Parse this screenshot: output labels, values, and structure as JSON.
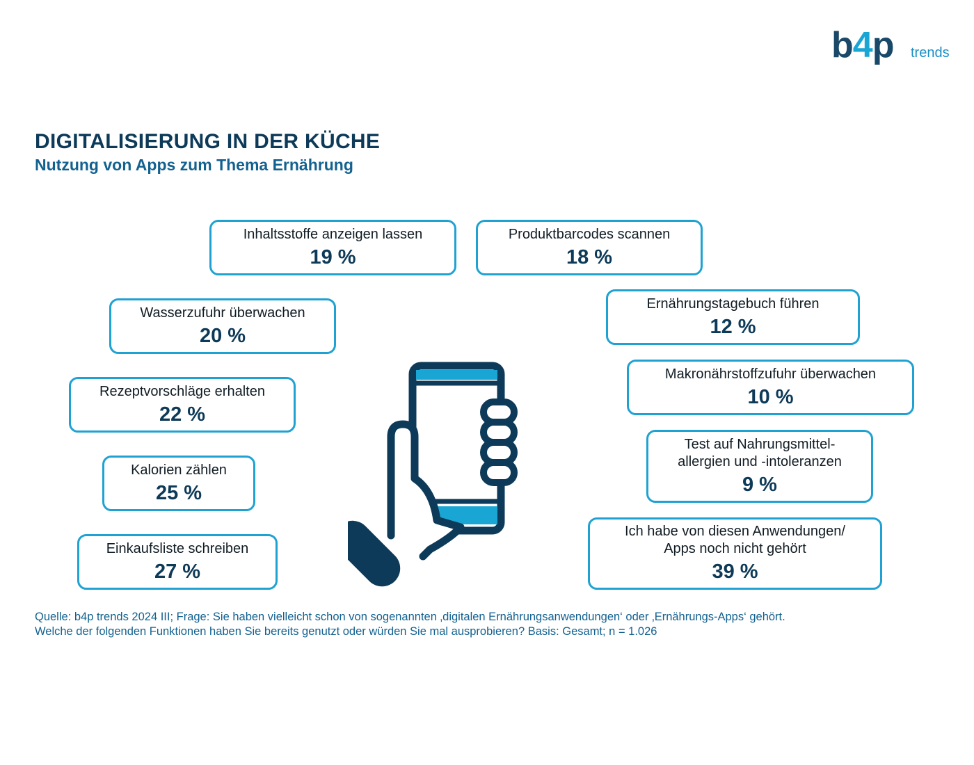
{
  "logo": {
    "brand_prefix": "b",
    "brand_accent": "4",
    "brand_suffix": "p",
    "tagline": "trends",
    "colors": {
      "dark": "#1a4868",
      "accent": "#1aa6d4"
    }
  },
  "title": "DIGITALISIERUNG IN DER KÜCHE",
  "subtitle": "Nutzung von Apps zum Thema Ernährung",
  "chart_data": {
    "type": "table",
    "unit": "%",
    "categories": [
      "Inhaltsstoffe anzeigen lassen",
      "Produktbarcodes scannen",
      "Wasserzufuhr überwachen",
      "Ernährungstagebuch führen",
      "Rezeptvorschläge erhalten",
      "Makronährstoffzufuhr überwachen",
      "Kalorien zählen",
      "Test auf Nahrungsmittel-\nallergien und -intoleranzen",
      "Einkaufsliste schreiben",
      "Ich habe von diesen Anwendungen/\nApps noch nicht gehört"
    ],
    "values": [
      19,
      18,
      20,
      12,
      22,
      10,
      25,
      9,
      27,
      39
    ],
    "value_labels": [
      "19 %",
      "18 %",
      "20 %",
      "12 %",
      "22 %",
      "10 %",
      "25 %",
      "9 %",
      "27 %",
      "39 %"
    ],
    "colors": {
      "border": "#1fa2d2",
      "value": "#0d3a58",
      "icon_dark": "#0d3a58",
      "icon_accent": "#1aa6d4"
    }
  },
  "illustration": {
    "icon": "hand-holding-smartphone-icon"
  },
  "footnote": {
    "line1": "Quelle: b4p trends 2024 III; Frage: Sie haben vielleicht schon von sogenannten ‚digitalen Ernährungsanwendungen‘ oder ‚Ernährungs-Apps‘ gehört.",
    "line2": "Welche der folgenden Funktionen haben Sie bereits genutzt oder würden Sie mal ausprobieren? Basis: Gesamt; n = 1.026"
  }
}
